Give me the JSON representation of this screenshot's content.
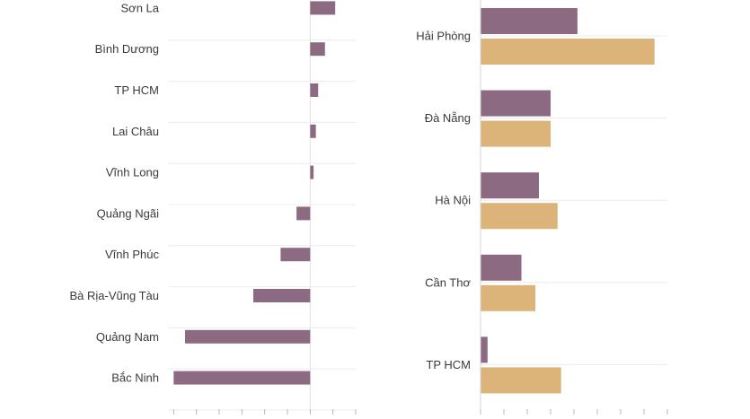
{
  "chart_data": [
    {
      "type": "bar",
      "orientation": "horizontal",
      "categories": [
        "Sơn La",
        "Bình Dương",
        "TP HCM",
        "Lai Châu",
        "Vĩnh Long",
        "Quảng Ngãi",
        "Vĩnh Phúc",
        "Bà Rịa-Vũng Tàu",
        "Quảng Nam",
        "Bắc Ninh"
      ],
      "series": [
        {
          "values": [
            2.2,
            1.3,
            0.7,
            0.5,
            0.3,
            -1.2,
            -2.6,
            -5.0,
            -11.0,
            -12.0
          ]
        }
      ],
      "xlim": [
        -12.5,
        4.0
      ],
      "xticks": [
        -12,
        -10,
        -8,
        -6,
        -4,
        -2,
        0,
        2,
        4
      ],
      "grid": true,
      "colors": {
        "series_1": "#8c6a82"
      }
    },
    {
      "type": "bar",
      "orientation": "horizontal",
      "categories": [
        "Hải Phòng",
        "Đà Nẵng",
        "Hà Nội",
        "Cần Thơ",
        "TP HCM"
      ],
      "series": [
        {
          "values": [
            8.3,
            6.0,
            5.0,
            3.5,
            0.6
          ]
        },
        {
          "values": [
            14.9,
            6.0,
            6.6,
            4.7,
            6.9
          ]
        }
      ],
      "xlim": [
        0,
        16
      ],
      "xticks": [
        0,
        2,
        4,
        6,
        8,
        10,
        12,
        14,
        16
      ],
      "grid": true,
      "colors": {
        "series_1": "#8c6a82",
        "series_2": "#dcb47a"
      }
    }
  ]
}
